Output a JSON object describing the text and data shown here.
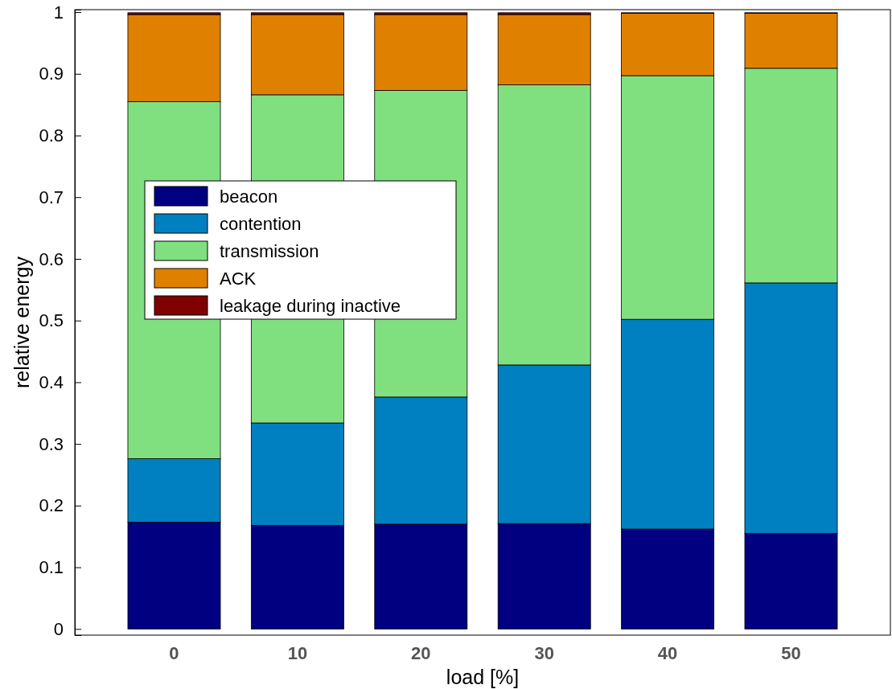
{
  "chart_data": {
    "type": "bar",
    "stacked": true,
    "xlabel": "load [%]",
    "ylabel": "relative energy",
    "categories": [
      "0",
      "10",
      "20",
      "30",
      "40",
      "50"
    ],
    "series": [
      {
        "name": "beacon",
        "color": "#000080",
        "values": [
          0.173,
          0.168,
          0.17,
          0.171,
          0.162,
          0.155
        ]
      },
      {
        "name": "contention",
        "color": "#0080c0",
        "values": [
          0.103,
          0.166,
          0.206,
          0.257,
          0.34,
          0.406
        ]
      },
      {
        "name": "transmission",
        "color": "#80e080",
        "values": [
          0.579,
          0.532,
          0.497,
          0.454,
          0.395,
          0.348
        ]
      },
      {
        "name": "ACK",
        "color": "#e08000",
        "values": [
          0.141,
          0.13,
          0.123,
          0.114,
          0.101,
          0.089
        ]
      },
      {
        "name": "leakage during inactive",
        "color": "#800000",
        "values": [
          0.003,
          0.003,
          0.003,
          0.003,
          0.001,
          0.001
        ]
      }
    ],
    "ylim": [
      -0.01,
      1.004
    ],
    "yticks": [
      0,
      0.1,
      0.2,
      0.3,
      0.4,
      0.5,
      0.6,
      0.7,
      0.8,
      0.9,
      1
    ],
    "legend": "center",
    "grid": false
  }
}
